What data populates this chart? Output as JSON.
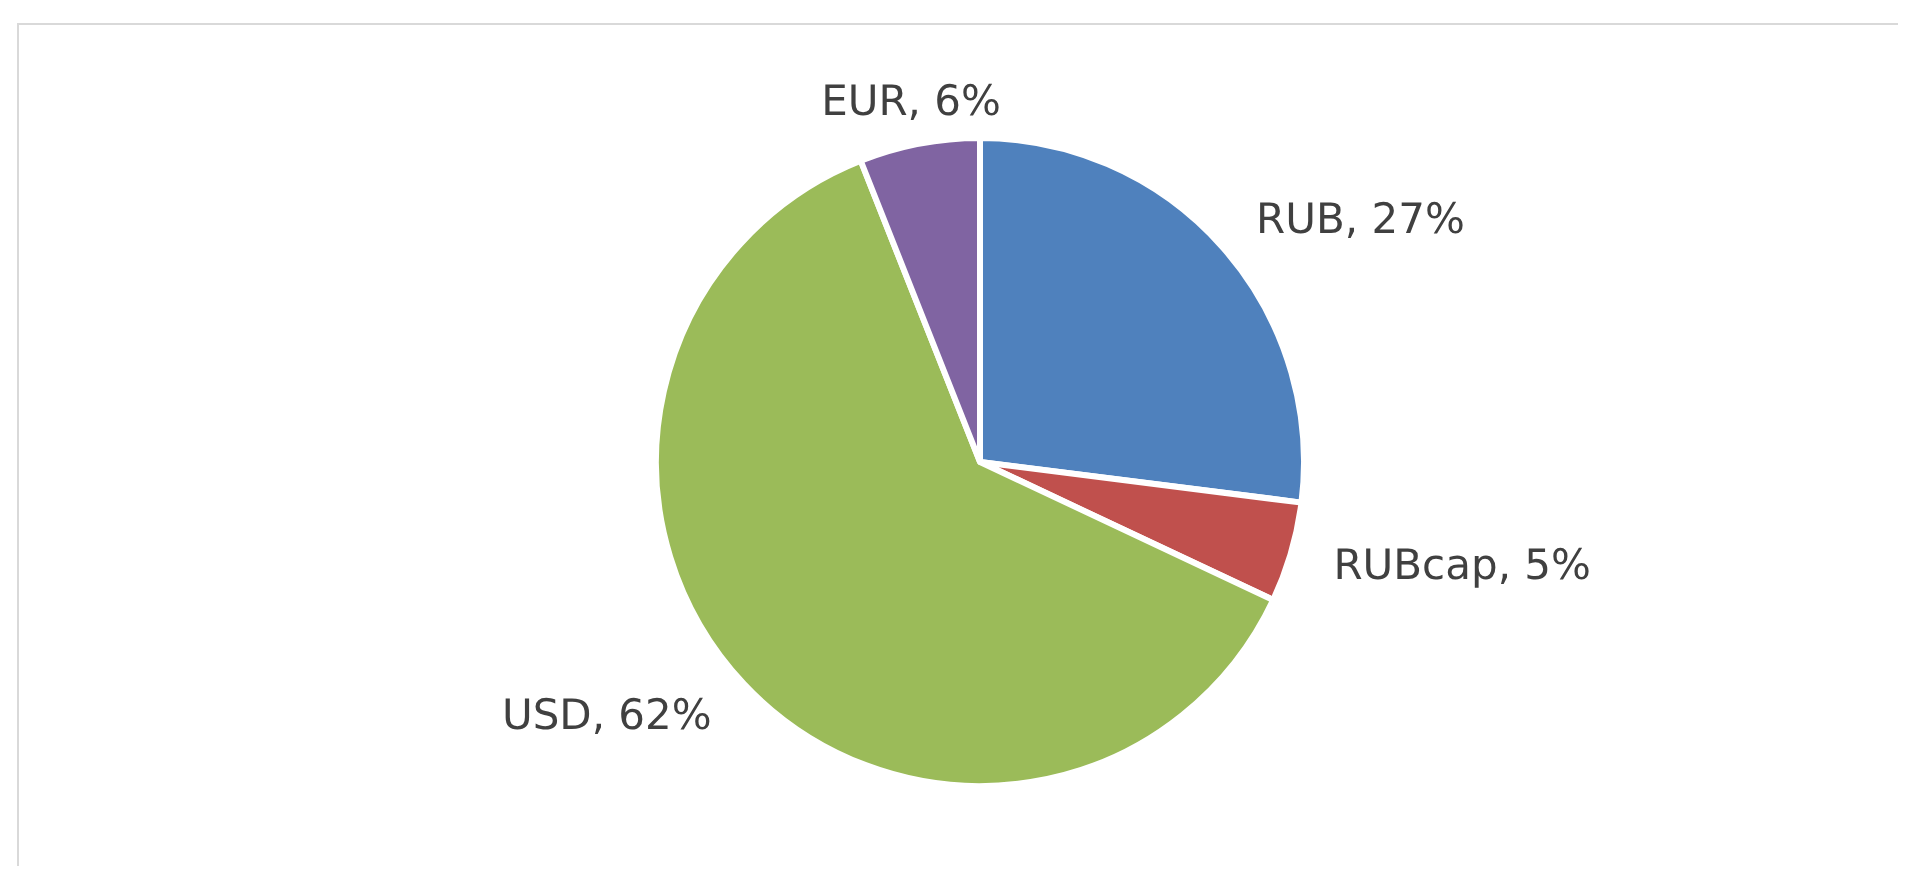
{
  "chart_data": {
    "type": "pie",
    "categories": [
      "RUB",
      "RUBcap",
      "USD",
      "EUR"
    ],
    "values": [
      27,
      5,
      62,
      6
    ],
    "colors": [
      "#4f81bd",
      "#c0504d",
      "#9bbb59",
      "#8064a2"
    ],
    "value_labels": [
      ", 27%",
      ", 5%",
      ", 62%",
      ", 6%"
    ]
  }
}
